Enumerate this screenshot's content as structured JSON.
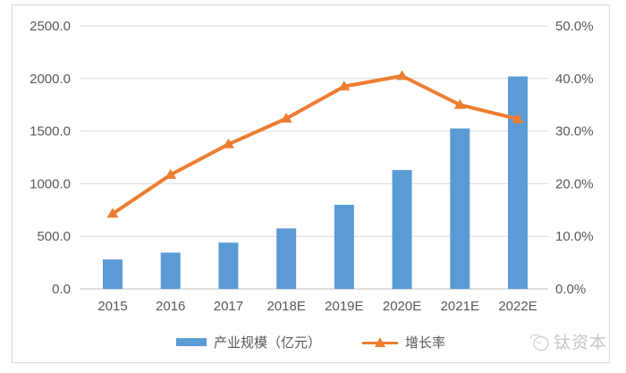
{
  "chart_data": {
    "type": "bar+line combo",
    "categories": [
      "2015",
      "2016",
      "2017",
      "2018E",
      "2019E",
      "2020E",
      "2021E",
      "2022E"
    ],
    "series": [
      {
        "name": "产业规模（亿元）",
        "type": "bar",
        "axis": "left",
        "color": "#5b9bd5",
        "values": [
          280,
          345,
          440,
          575,
          800,
          1130,
          1525,
          2020
        ]
      },
      {
        "name": "增长率",
        "type": "line",
        "axis": "right",
        "color": "#ed7d31",
        "marker": "triangle",
        "values": [
          14.3,
          21.7,
          27.5,
          32.4,
          38.5,
          40.5,
          35.0,
          32.3
        ]
      }
    ],
    "left_axis": {
      "min": 0,
      "max": 2500,
      "step": 500,
      "tick_labels": [
        "0.0",
        "500.0",
        "1000.0",
        "1500.0",
        "2000.0",
        "2500.0"
      ]
    },
    "right_axis": {
      "min": 0,
      "max": 50,
      "step": 10,
      "tick_labels": [
        "0.0%",
        "10.0%",
        "20.0%",
        "30.0%",
        "40.0%",
        "50.0%"
      ]
    },
    "title": "",
    "grid": true,
    "legend_position": "bottom"
  },
  "legend": {
    "bar_label": "产业规模（亿元）",
    "line_label": "增长率"
  },
  "watermark": {
    "text": "钛资本"
  },
  "colors": {
    "bar": "#5b9bd5",
    "line": "#ed7d31",
    "gridline": "#d9d9d9",
    "axis_line": "#bfbfbf",
    "tick_text": "#595959",
    "frame_border": "#d7d7d7",
    "watermark": "#c6c6c6"
  }
}
